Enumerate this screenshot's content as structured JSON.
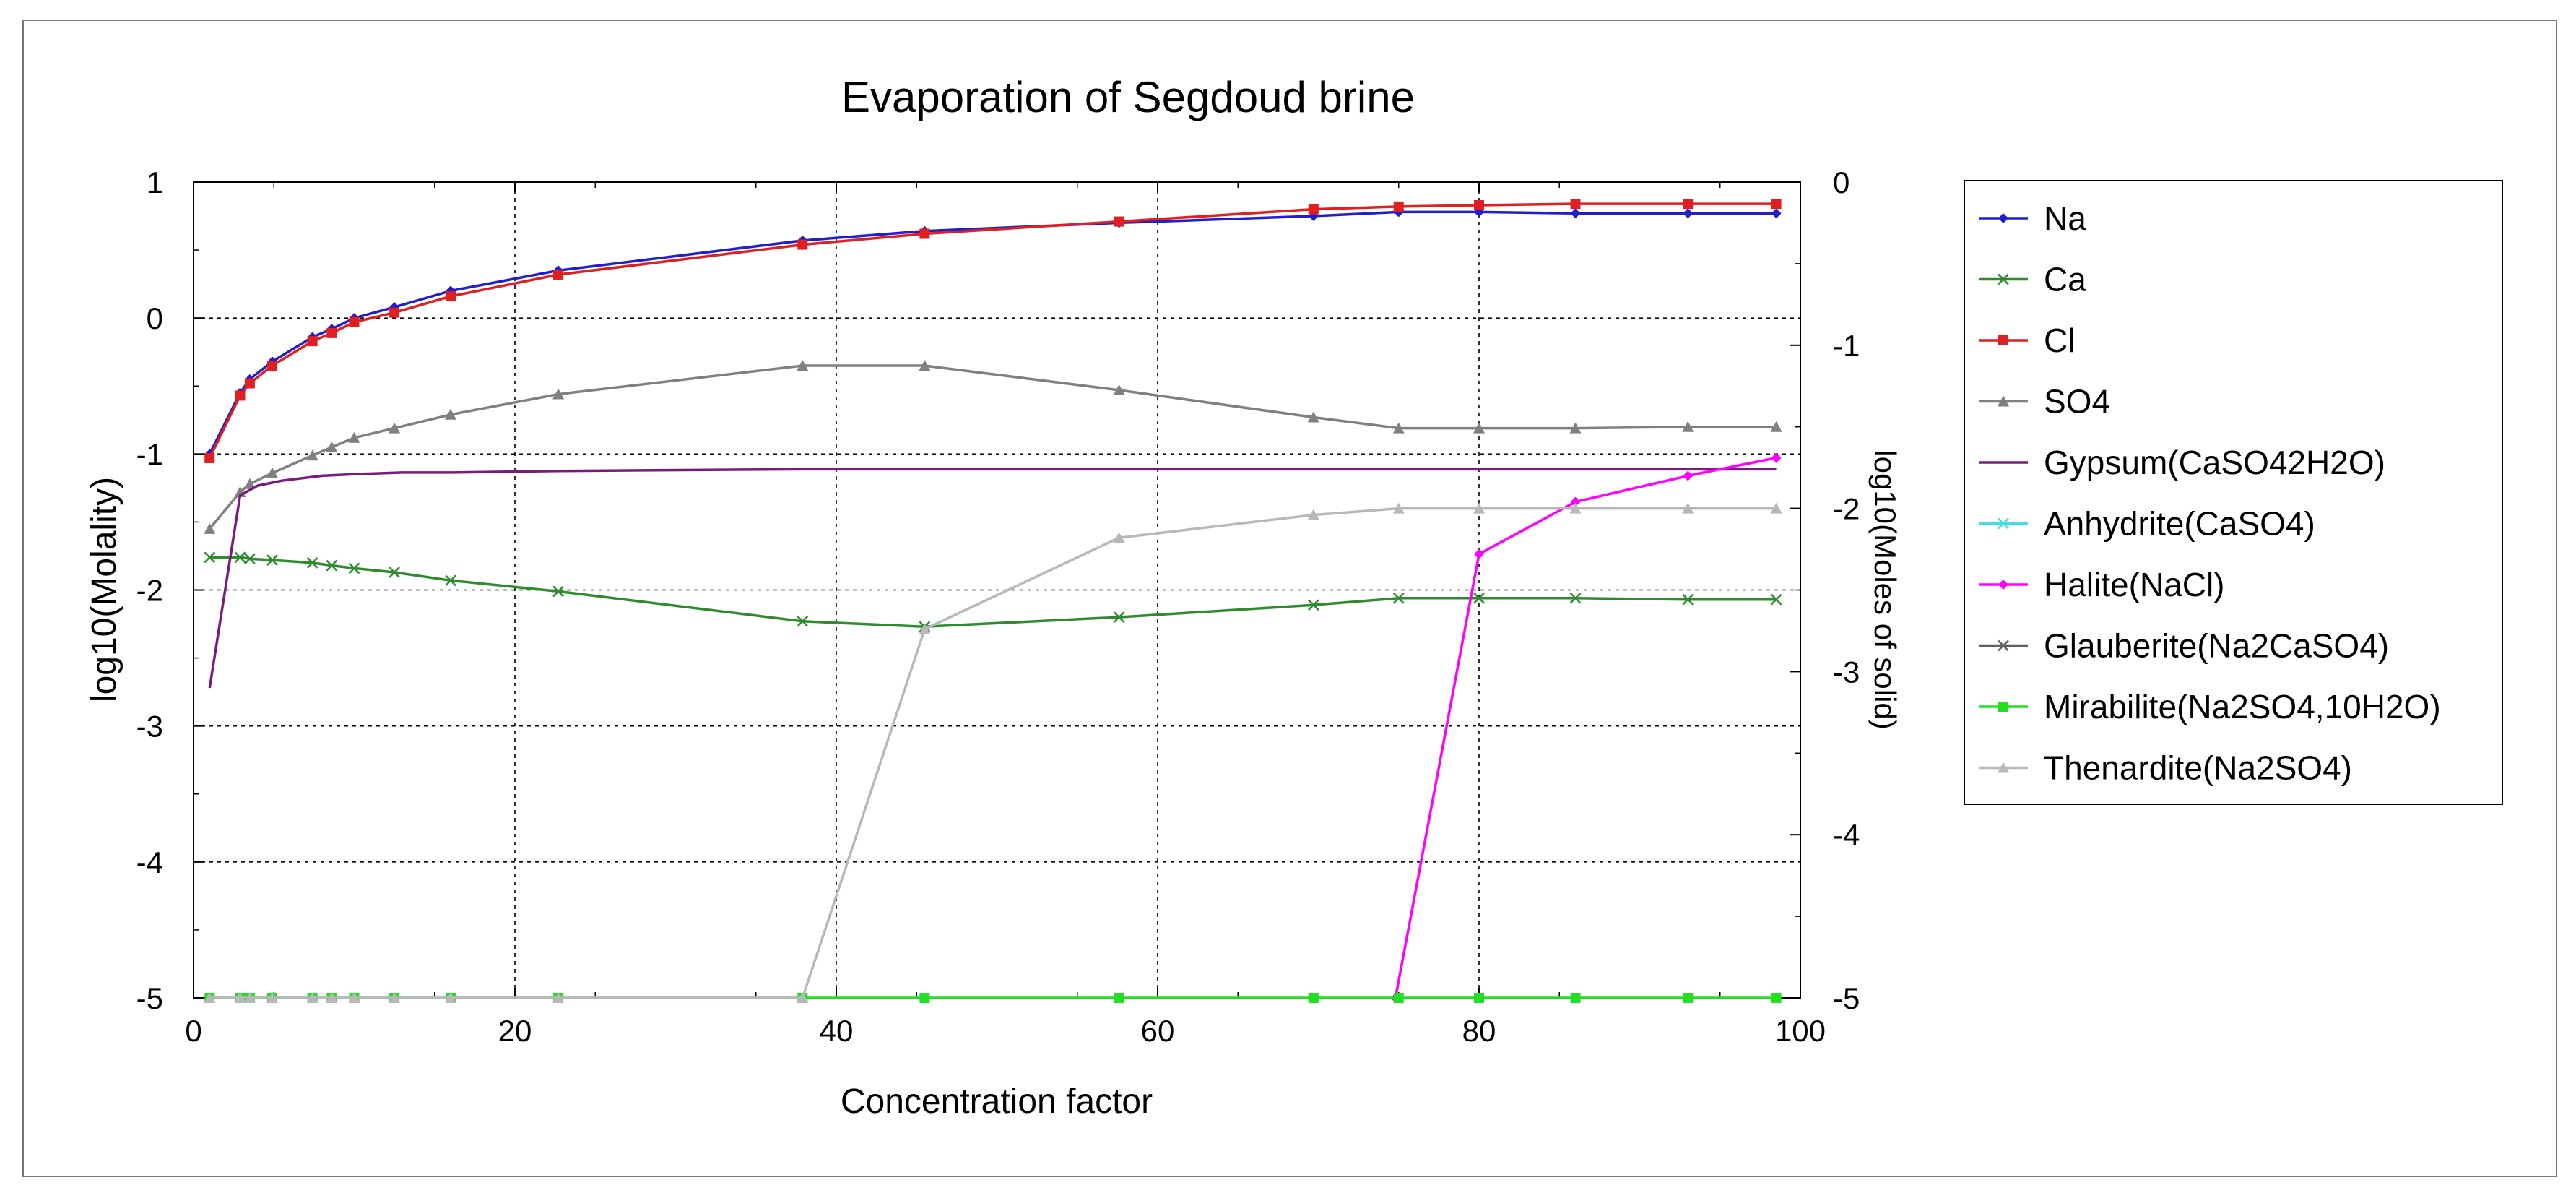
{
  "chart_data": {
    "type": "line",
    "title": "Evaporation of Segdoud brine",
    "xlabel": "Concentration factor",
    "ylabel": "log10(Molality)",
    "y2label": "log10(Moles of solid)",
    "xlim": [
      0,
      100
    ],
    "ylim": [
      -5,
      1
    ],
    "y2lim": [
      -5,
      0
    ],
    "xticks": [
      "0",
      "20",
      "40",
      "60",
      "80",
      "100"
    ],
    "yticks": [
      "1",
      "0",
      "-1",
      "-2",
      "-3",
      "-4",
      "-5"
    ],
    "y2ticks": [
      "0",
      "-1",
      "-2",
      "-3",
      "-4",
      "-5"
    ],
    "grid": true,
    "legend_position": "right",
    "series": [
      {
        "name": "Na",
        "axis": "left",
        "color": "#1f1fcf",
        "marker": "diamond",
        "x": [
          1,
          2.9,
          3.5,
          4.9,
          7.4,
          8.6,
          10,
          12.5,
          16,
          22.7,
          37.9,
          45.5,
          57.6,
          69.7,
          75,
          80,
          86,
          93,
          98.5
        ],
        "y": [
          -1.0,
          -0.55,
          -0.45,
          -0.32,
          -0.14,
          -0.08,
          0.0,
          0.08,
          0.2,
          0.35,
          0.57,
          0.64,
          0.7,
          0.75,
          0.78,
          0.78,
          0.77,
          0.77,
          0.77
        ]
      },
      {
        "name": "Ca",
        "axis": "left",
        "color": "#2e8b2e",
        "marker": "x",
        "x": [
          1,
          2.9,
          3.5,
          4.9,
          7.4,
          8.6,
          10,
          12.5,
          16,
          22.7,
          37.9,
          45.5,
          57.6,
          69.7,
          75,
          80,
          86,
          93,
          98.5
        ],
        "y": [
          -1.76,
          -1.76,
          -1.77,
          -1.78,
          -1.8,
          -1.82,
          -1.84,
          -1.87,
          -1.93,
          -2.01,
          -2.23,
          -2.27,
          -2.2,
          -2.11,
          -2.06,
          -2.06,
          -2.06,
          -2.07,
          -2.07
        ]
      },
      {
        "name": "Cl",
        "axis": "left",
        "color": "#e02020",
        "marker": "square",
        "x": [
          1,
          2.9,
          3.5,
          4.9,
          7.4,
          8.6,
          10,
          12.5,
          16,
          22.7,
          37.9,
          45.5,
          57.6,
          69.7,
          75,
          80,
          86,
          93,
          98.5
        ],
        "y": [
          -1.03,
          -0.57,
          -0.48,
          -0.35,
          -0.17,
          -0.11,
          -0.03,
          0.04,
          0.16,
          0.32,
          0.54,
          0.62,
          0.71,
          0.8,
          0.82,
          0.83,
          0.84,
          0.84,
          0.84
        ]
      },
      {
        "name": "SO4",
        "axis": "left",
        "color": "#808080",
        "marker": "triangle",
        "x": [
          1,
          2.9,
          3.5,
          4.9,
          7.4,
          8.6,
          10,
          12.5,
          16,
          22.7,
          37.9,
          45.5,
          57.6,
          69.7,
          75,
          80,
          86,
          93,
          98.5
        ],
        "y": [
          -1.55,
          -1.28,
          -1.22,
          -1.14,
          -1.01,
          -0.95,
          -0.88,
          -0.81,
          -0.71,
          -0.56,
          -0.35,
          -0.35,
          -0.53,
          -0.73,
          -0.81,
          -0.81,
          -0.81,
          -0.8,
          -0.8
        ]
      },
      {
        "name": "Gypsum(CaSO42H2O)",
        "axis": "right",
        "color": "#7b1a7b",
        "marker": "none",
        "x": [
          1,
          2.9,
          4,
          5.5,
          8,
          10,
          13,
          16,
          22.7,
          37.9,
          45.5,
          57.6,
          69.7,
          80,
          93,
          98.5
        ],
        "y": [
          -3.1,
          -1.92,
          -1.86,
          -1.83,
          -1.8,
          -1.79,
          -1.78,
          -1.78,
          -1.77,
          -1.76,
          -1.76,
          -1.76,
          -1.76,
          -1.76,
          -1.76,
          -1.76
        ]
      },
      {
        "name": "Anhydrite(CaSO4)",
        "axis": "right",
        "color": "#40e0e0",
        "marker": "x",
        "x": [],
        "y": []
      },
      {
        "name": "Halite(NaCl)",
        "axis": "right",
        "color": "#ff00ff",
        "marker": "diamond",
        "x": [
          74.8,
          80,
          86,
          93,
          98.5
        ],
        "y": [
          -5,
          -2.28,
          -1.96,
          -1.8,
          -1.69
        ]
      },
      {
        "name": "Glauberite(Na2CaSO4)",
        "axis": "right",
        "color": "#606060",
        "marker": "x",
        "x": [],
        "y": []
      },
      {
        "name": "Mirabilite(Na2SO4,10H2O)",
        "axis": "right",
        "color": "#20e020",
        "marker": "square",
        "x": [
          1,
          2.9,
          3.5,
          4.9,
          7.4,
          8.6,
          10,
          12.5,
          16,
          22.7,
          37.9,
          45.5,
          57.6,
          69.7,
          75,
          80,
          86,
          93,
          98.5
        ],
        "y": [
          -5,
          -5,
          -5,
          -5,
          -5,
          -5,
          -5,
          -5,
          -5,
          -5,
          -5,
          -5,
          -5,
          -5,
          -5,
          -5,
          -5,
          -5,
          -5
        ]
      },
      {
        "name": "Thenardite(Na2SO4)",
        "axis": "right",
        "color": "#b8b8b8",
        "marker": "triangle",
        "x": [
          1,
          2.9,
          3.5,
          4.9,
          7.4,
          8.6,
          10,
          12.5,
          16,
          22.7,
          37.9,
          45.5,
          57.6,
          69.7,
          75,
          80,
          86,
          93,
          98.5
        ],
        "y": [
          -5,
          -5,
          -5,
          -5,
          -5,
          -5,
          -5,
          -5,
          -5,
          -5,
          -5,
          -2.74,
          -2.18,
          -2.04,
          -2.0,
          -2.0,
          -2.0,
          -2.0,
          -2.0
        ]
      }
    ]
  }
}
